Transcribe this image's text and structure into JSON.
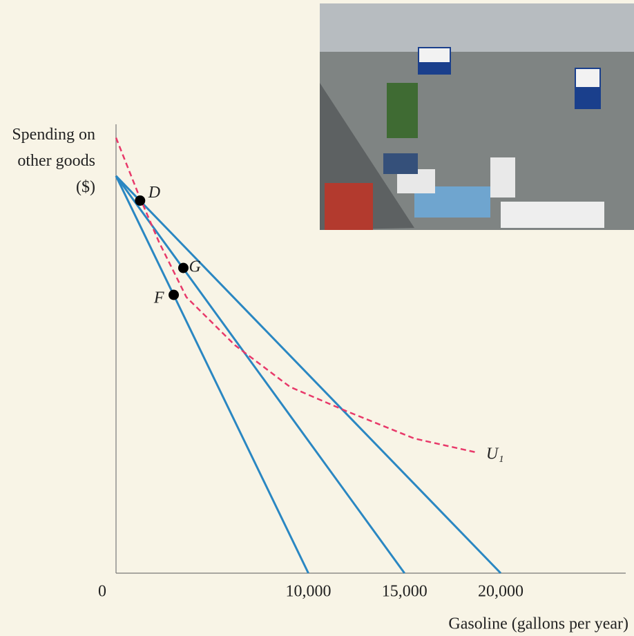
{
  "chart_data": {
    "type": "line",
    "y_label": "Spending on other goods ($)",
    "x_label": "Gasoline (gallons per year)",
    "xlim": [
      0,
      26500
    ],
    "ylim": [
      0,
      100
    ],
    "xticks": [
      0,
      {
        "value": 10000,
        "label": "10,000"
      },
      {
        "value": 15000,
        "label": "15,000"
      },
      {
        "value": 20000,
        "label": "20,000"
      }
    ],
    "series": [
      {
        "color": "#2a87c2",
        "x": [
          0,
          10000
        ],
        "values": [
          88.5,
          0
        ]
      },
      {
        "color": "#2a87c2",
        "x": [
          0,
          15000
        ],
        "values": [
          88.5,
          0
        ]
      },
      {
        "color": "#2a87c2",
        "x": [
          0,
          20000
        ],
        "values": [
          88.5,
          0
        ]
      },
      {
        "name": "U₁",
        "color": "#e8396a",
        "dashed": true,
        "x": [
          0,
          1150,
          2230,
          3660,
          6180,
          9050,
          11920,
          15510,
          18740
        ],
        "values": [
          97,
          84.6,
          73.8,
          61.5,
          50.8,
          41.5,
          36.2,
          30,
          26.9
        ]
      }
    ],
    "points": [
      {
        "label": "D",
        "x": 1250,
        "y": 83
      },
      {
        "label": "G",
        "x": 3500,
        "y": 68
      },
      {
        "label": "F",
        "x": 3000,
        "y": 62
      }
    ]
  }
}
